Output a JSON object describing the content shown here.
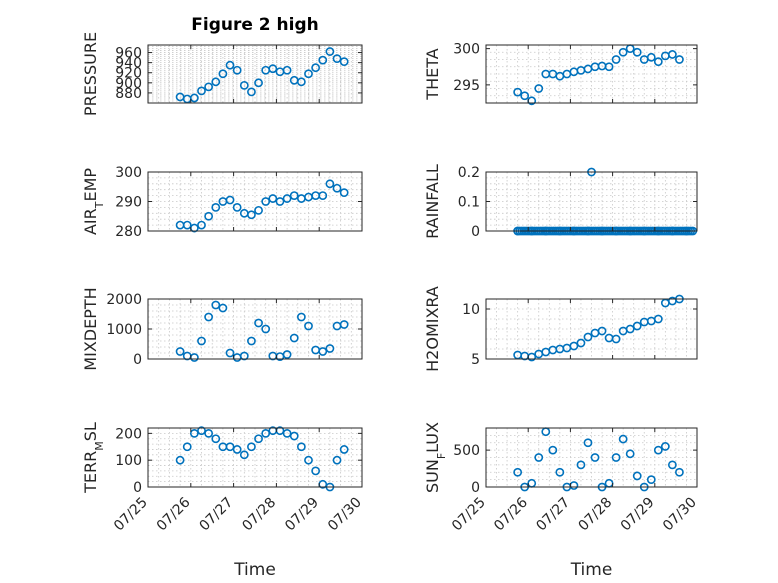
{
  "chart_data": [
    {
      "id": "pressure",
      "type": "scatter",
      "title": "Figure 2 high",
      "ylabel": "PRESSURE",
      "ylim": [
        860,
        975
      ],
      "yticks": [
        880,
        900,
        920,
        940,
        960
      ],
      "x": [
        "07/25 18:00",
        "07/25 22:00",
        "07/26 02:00",
        "07/26 06:00",
        "07/26 10:00",
        "07/26 14:00",
        "07/26 18:00",
        "07/26 22:00",
        "07/27 02:00",
        "07/27 06:00",
        "07/27 10:00",
        "07/27 14:00",
        "07/27 18:00",
        "07/27 22:00",
        "07/28 02:00",
        "07/28 06:00",
        "07/28 10:00",
        "07/28 14:00",
        "07/28 18:00",
        "07/28 22:00",
        "07/29 02:00",
        "07/29 06:00",
        "07/29 10:00",
        "07/29 14:00"
      ],
      "y": [
        872,
        868,
        870,
        884,
        892,
        902,
        918,
        935,
        925,
        895,
        882,
        900,
        925,
        928,
        922,
        925,
        905,
        902,
        918,
        930,
        945,
        962,
        948,
        942
      ]
    },
    {
      "id": "theta",
      "type": "scatter",
      "title": "",
      "ylabel": "THETA",
      "ylim": [
        292.5,
        300.5
      ],
      "yticks": [
        295,
        300
      ],
      "x": [
        "07/25 18:00",
        "07/25 22:00",
        "07/26 02:00",
        "07/26 06:00",
        "07/26 10:00",
        "07/26 14:00",
        "07/26 18:00",
        "07/26 22:00",
        "07/27 02:00",
        "07/27 06:00",
        "07/27 10:00",
        "07/27 14:00",
        "07/27 18:00",
        "07/27 22:00",
        "07/28 02:00",
        "07/28 06:00",
        "07/28 10:00",
        "07/28 14:00",
        "07/28 18:00",
        "07/28 22:00",
        "07/29 02:00",
        "07/29 06:00",
        "07/29 10:00",
        "07/29 14:00"
      ],
      "y": [
        294,
        293.5,
        292.8,
        294.5,
        296.5,
        296.5,
        296.2,
        296.5,
        296.8,
        297,
        297.2,
        297.5,
        297.6,
        297.5,
        298.5,
        299.5,
        300,
        299.5,
        298.5,
        298.8,
        298.2,
        299,
        299.2,
        298.5
      ]
    },
    {
      "id": "air_temp",
      "type": "scatter",
      "title": "",
      "ylabel": "AIR_TEMP",
      "ylim": [
        280,
        300
      ],
      "yticks": [
        280,
        290,
        300
      ],
      "x": [
        "07/25 18:00",
        "07/25 22:00",
        "07/26 02:00",
        "07/26 06:00",
        "07/26 10:00",
        "07/26 14:00",
        "07/26 18:00",
        "07/26 22:00",
        "07/27 02:00",
        "07/27 06:00",
        "07/27 10:00",
        "07/27 14:00",
        "07/27 18:00",
        "07/27 22:00",
        "07/28 02:00",
        "07/28 06:00",
        "07/28 10:00",
        "07/28 14:00",
        "07/28 18:00",
        "07/28 22:00",
        "07/29 02:00",
        "07/29 06:00",
        "07/29 10:00",
        "07/29 14:00"
      ],
      "y": [
        282,
        282,
        281,
        282,
        285,
        288,
        290,
        290.5,
        288,
        286,
        285.5,
        287,
        290,
        291,
        290,
        291,
        292,
        291,
        291.5,
        292,
        292,
        296,
        294.5,
        293
      ]
    },
    {
      "id": "rainfall",
      "type": "scatter",
      "title": "",
      "ylabel": "RAINFALL",
      "ylim": [
        0,
        0.2
      ],
      "yticks": [
        0,
        0.1,
        0.2
      ],
      "x": [
        "07/25 18:00",
        "07/26 02:00",
        "07/26 10:00",
        "07/26 18:00",
        "07/27 02:00",
        "07/27 10:00",
        "07/27 12:00",
        "07/27 18:00",
        "07/28 02:00",
        "07/28 10:00",
        "07/28 18:00",
        "07/29 02:00",
        "07/29 10:00",
        "07/29 18:00"
      ],
      "y": [
        0,
        0,
        0,
        0,
        0,
        0,
        0.2,
        0,
        0,
        0,
        0,
        0,
        0,
        0
      ]
    },
    {
      "id": "mixdepth",
      "type": "scatter",
      "title": "",
      "ylabel": "MIXDEPTH",
      "ylim": [
        0,
        2000
      ],
      "yticks": [
        0,
        1000,
        2000
      ],
      "x": [
        "07/25 18:00",
        "07/25 22:00",
        "07/26 02:00",
        "07/26 06:00",
        "07/26 10:00",
        "07/26 14:00",
        "07/26 18:00",
        "07/26 22:00",
        "07/27 02:00",
        "07/27 06:00",
        "07/27 10:00",
        "07/27 14:00",
        "07/27 18:00",
        "07/27 22:00",
        "07/28 02:00",
        "07/28 06:00",
        "07/28 10:00",
        "07/28 14:00",
        "07/28 18:00",
        "07/28 22:00",
        "07/29 02:00",
        "07/29 06:00",
        "07/29 10:00",
        "07/29 14:00"
      ],
      "y": [
        250,
        100,
        50,
        600,
        1400,
        1800,
        1700,
        200,
        50,
        100,
        600,
        1200,
        1000,
        100,
        80,
        150,
        700,
        1400,
        1100,
        300,
        250,
        350,
        1100,
        1150
      ]
    },
    {
      "id": "h2omixra",
      "type": "scatter",
      "title": "",
      "ylabel": "H2OMIXRA",
      "ylim": [
        5,
        11
      ],
      "yticks": [
        5,
        10
      ],
      "x": [
        "07/25 18:00",
        "07/25 22:00",
        "07/26 02:00",
        "07/26 06:00",
        "07/26 10:00",
        "07/26 14:00",
        "07/26 18:00",
        "07/26 22:00",
        "07/27 02:00",
        "07/27 06:00",
        "07/27 10:00",
        "07/27 14:00",
        "07/27 18:00",
        "07/27 22:00",
        "07/28 02:00",
        "07/28 06:00",
        "07/28 10:00",
        "07/28 14:00",
        "07/28 18:00",
        "07/28 22:00",
        "07/29 02:00",
        "07/29 06:00",
        "07/29 10:00",
        "07/29 14:00"
      ],
      "y": [
        5.4,
        5.3,
        5.2,
        5.5,
        5.7,
        5.9,
        6,
        6.1,
        6.3,
        6.6,
        7.2,
        7.6,
        7.8,
        7.1,
        7,
        7.8,
        8,
        8.3,
        8.7,
        8.8,
        9,
        10.6,
        10.8,
        11
      ]
    },
    {
      "id": "terr_msl",
      "type": "scatter",
      "title": "",
      "ylabel": "TERR_MSL",
      "ylim": [
        0,
        220
      ],
      "yticks": [
        0,
        100,
        200
      ],
      "x": [
        "07/25 18:00",
        "07/25 22:00",
        "07/26 02:00",
        "07/26 06:00",
        "07/26 10:00",
        "07/26 14:00",
        "07/26 18:00",
        "07/26 22:00",
        "07/27 02:00",
        "07/27 06:00",
        "07/27 10:00",
        "07/27 14:00",
        "07/27 18:00",
        "07/27 22:00",
        "07/28 02:00",
        "07/28 06:00",
        "07/28 10:00",
        "07/28 14:00",
        "07/28 18:00",
        "07/28 22:00",
        "07/29 02:00",
        "07/29 06:00",
        "07/29 10:00",
        "07/29 14:00"
      ],
      "y": [
        100,
        150,
        200,
        210,
        200,
        180,
        150,
        150,
        140,
        120,
        150,
        180,
        200,
        210,
        210,
        200,
        190,
        150,
        100,
        60,
        10,
        0,
        100,
        140
      ]
    },
    {
      "id": "sun_flux",
      "type": "scatter",
      "title": "",
      "ylabel": "SUN_FLUX",
      "ylim": [
        0,
        800
      ],
      "yticks": [
        0,
        500
      ],
      "x": [
        "07/25 18:00",
        "07/25 22:00",
        "07/26 02:00",
        "07/26 06:00",
        "07/26 10:00",
        "07/26 14:00",
        "07/26 18:00",
        "07/26 22:00",
        "07/27 02:00",
        "07/27 06:00",
        "07/27 10:00",
        "07/27 14:00",
        "07/27 18:00",
        "07/27 22:00",
        "07/28 02:00",
        "07/28 06:00",
        "07/28 10:00",
        "07/28 14:00",
        "07/28 18:00",
        "07/28 22:00",
        "07/29 02:00",
        "07/29 06:00",
        "07/29 10:00",
        "07/29 14:00"
      ],
      "y": [
        200,
        0,
        50,
        400,
        750,
        500,
        200,
        0,
        20,
        300,
        600,
        400,
        0,
        50,
        400,
        650,
        450,
        150,
        0,
        100,
        500,
        550,
        300,
        200
      ]
    }
  ],
  "x_axis": {
    "label": "Time",
    "ticks": [
      "07/25",
      "07/26",
      "07/27",
      "07/28",
      "07/29",
      "07/30"
    ],
    "range": [
      "07/25 00:00",
      "07/30 00:00"
    ]
  },
  "style": {
    "marker": "open-circle",
    "marker_color": "#0072BD",
    "grid": true
  }
}
